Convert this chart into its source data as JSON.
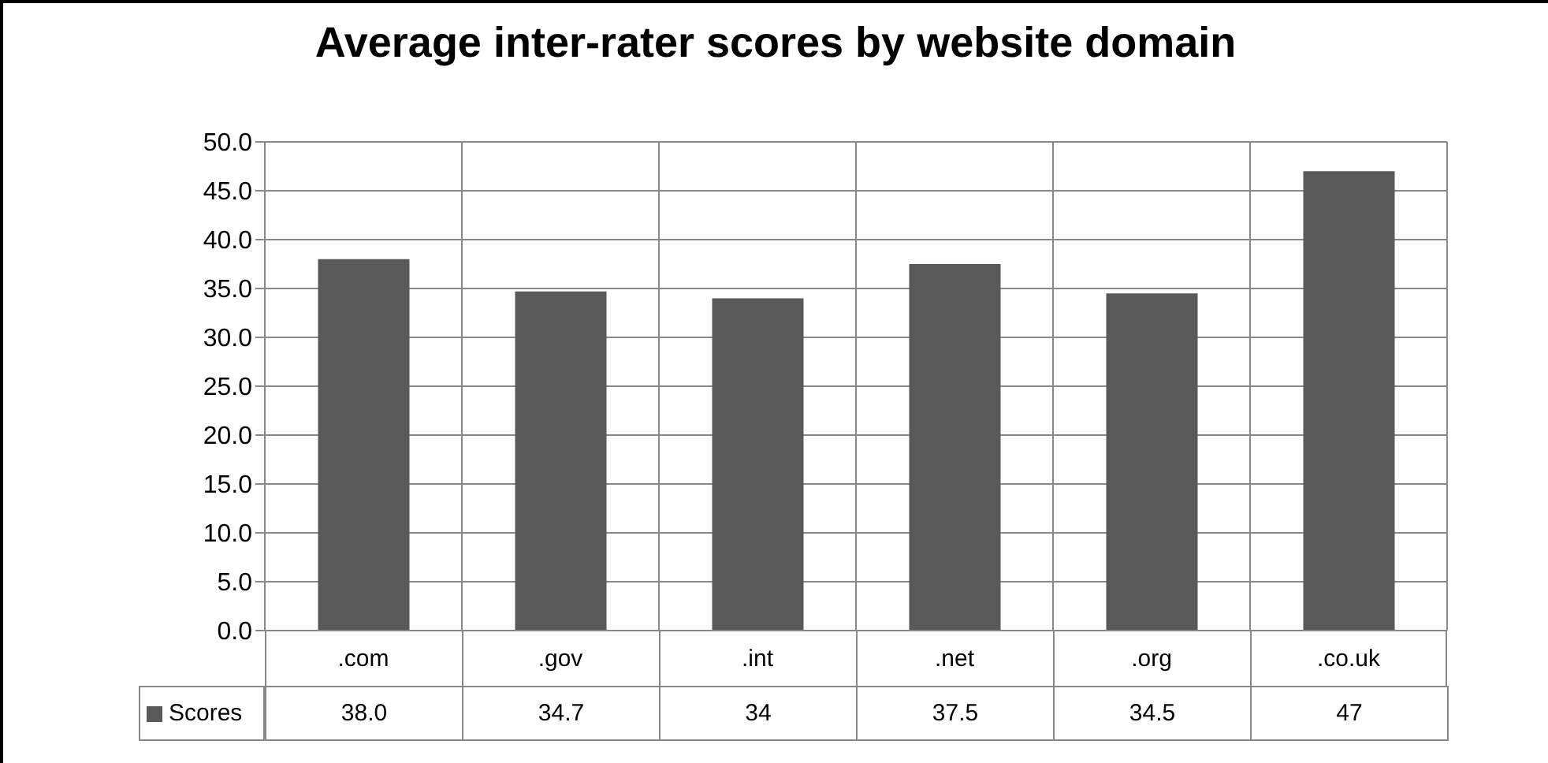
{
  "chart_data": {
    "type": "bar",
    "title": "Average inter-rater scores by website domain",
    "categories": [
      ".com",
      ".gov",
      ".int",
      ".net",
      ".org",
      ".co.uk"
    ],
    "series": [
      {
        "name": "Scores",
        "color": "#595959",
        "values": [
          38.0,
          34.7,
          34,
          37.5,
          34.5,
          47
        ],
        "value_labels": [
          "38.0",
          "34.7",
          "34",
          "37.5",
          "34.5",
          "47"
        ]
      }
    ],
    "ylim": [
      0,
      50
    ],
    "yticks": [
      {
        "value": 0,
        "label": "0.0"
      },
      {
        "value": 5,
        "label": "5.0"
      },
      {
        "value": 10,
        "label": "10.0"
      },
      {
        "value": 15,
        "label": "15.0"
      },
      {
        "value": 20,
        "label": "20.0"
      },
      {
        "value": 25,
        "label": "25.0"
      },
      {
        "value": 30,
        "label": "30.0"
      },
      {
        "value": 35,
        "label": "35.0"
      },
      {
        "value": 40,
        "label": "40.0"
      },
      {
        "value": 45,
        "label": "45.0"
      },
      {
        "value": 50,
        "label": "50.0"
      }
    ],
    "grid": true,
    "legend": "bottom left"
  }
}
